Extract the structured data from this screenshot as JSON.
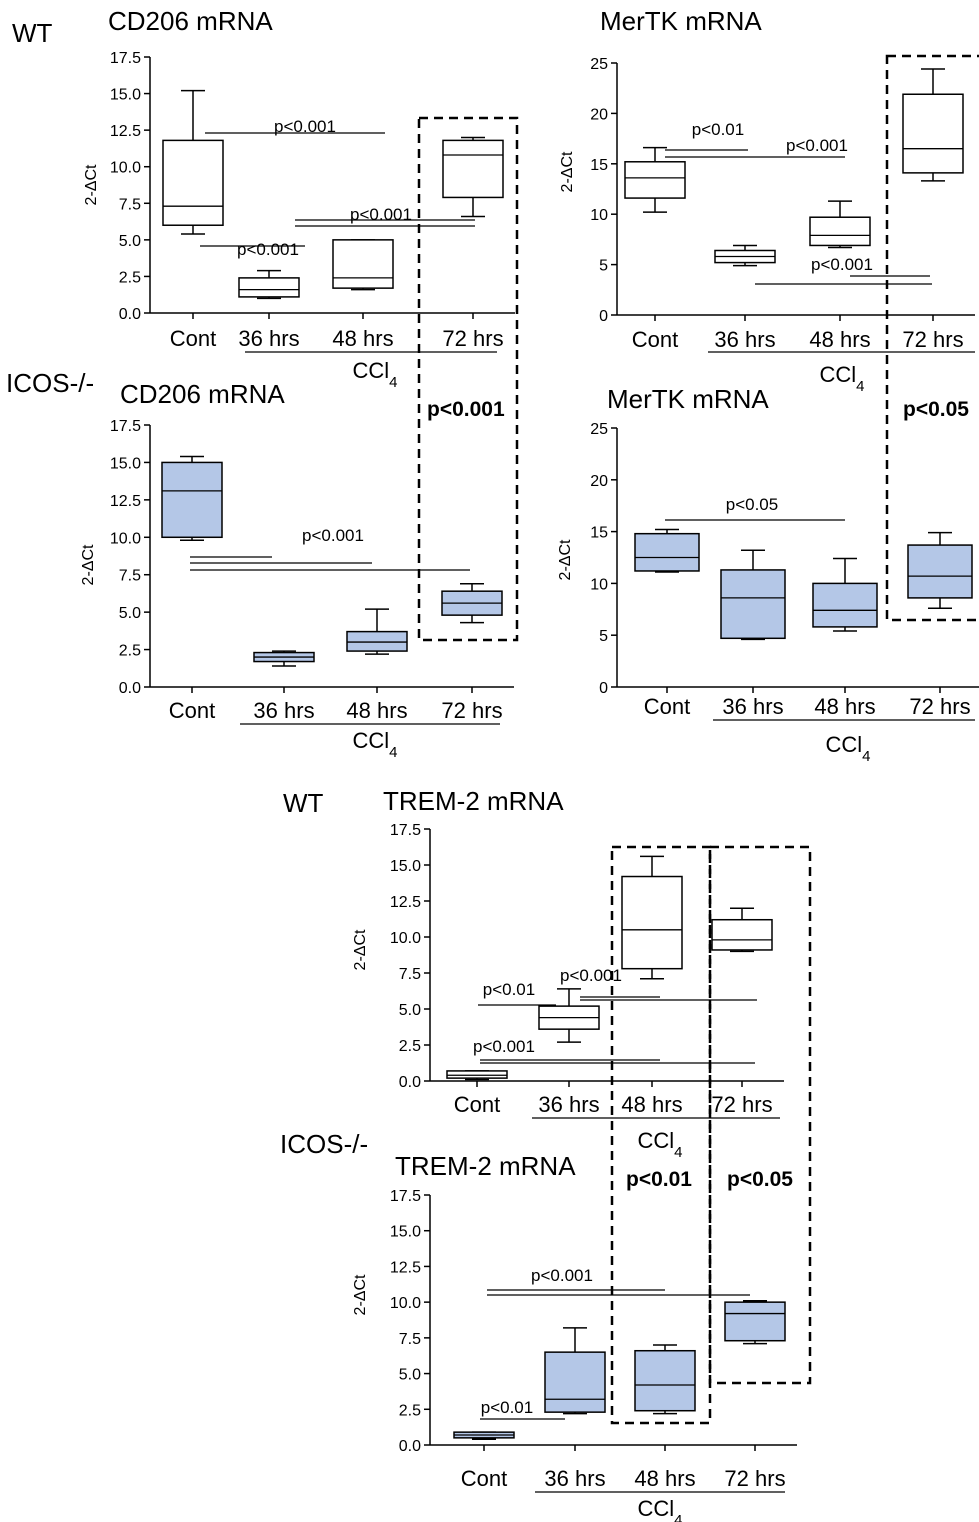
{
  "colors": {
    "wt_box": "#ffffff",
    "icos_box": "#b4c7e7",
    "stroke": "#000000"
  },
  "ylabel": "2-ΔCt",
  "categories": [
    "Cont",
    "36 hrs",
    "48 hrs",
    "72 hrs"
  ],
  "group_label": "CCl4",
  "row_labels": {
    "wt": "WT",
    "icos": "ICOS-/-",
    "wt2": "WT",
    "icos2": "ICOS-/-"
  },
  "highlights": [
    "p<0.001",
    "p<0.05",
    "p<0.01",
    "p<0.05"
  ],
  "chart_data": [
    {
      "type": "box",
      "title": "CD206 mRNA",
      "group": "WT",
      "fill": "white",
      "ylim": [
        0,
        17.5
      ],
      "ticks": [
        "0.0",
        "2.5",
        "5.0",
        "7.5",
        "10.0",
        "12.5",
        "15.0",
        "17.5"
      ],
      "categories": [
        "Cont",
        "36 hrs",
        "48 hrs",
        "72 hrs"
      ],
      "boxes": [
        {
          "min": 5.4,
          "q1": 6.0,
          "median": 7.3,
          "q3": 11.8,
          "max": 15.2
        },
        {
          "min": 1.0,
          "q1": 1.1,
          "median": 1.6,
          "q3": 2.4,
          "max": 2.9
        },
        {
          "min": 1.6,
          "q1": 1.7,
          "median": 2.4,
          "q3": 5.0,
          "max": 5.0
        },
        {
          "min": 6.6,
          "q1": 7.9,
          "median": 10.8,
          "q3": 11.8,
          "max": 12.0
        }
      ],
      "annotations": [
        "p<0.001",
        "p<0.001",
        "p<0.001"
      ]
    },
    {
      "type": "box",
      "title": "MerTK mRNA",
      "group": "WT",
      "fill": "white",
      "ylim": [
        0,
        25
      ],
      "ticks": [
        "0",
        "5",
        "10",
        "15",
        "20",
        "25"
      ],
      "categories": [
        "Cont",
        "36 hrs",
        "48 hrs",
        "72 hrs"
      ],
      "boxes": [
        {
          "min": 10.2,
          "q1": 11.6,
          "median": 13.6,
          "q3": 15.2,
          "max": 16.6
        },
        {
          "min": 4.9,
          "q1": 5.2,
          "median": 5.8,
          "q3": 6.4,
          "max": 6.9
        },
        {
          "min": 6.7,
          "q1": 6.9,
          "median": 7.9,
          "q3": 9.7,
          "max": 11.3
        },
        {
          "min": 13.3,
          "q1": 14.1,
          "median": 16.5,
          "q3": 21.9,
          "max": 24.4
        }
      ],
      "annotations": [
        "p<0.01",
        "p<0.001",
        "p<0.001"
      ]
    },
    {
      "type": "box",
      "title": "CD206 mRNA",
      "group": "ICOS-/-",
      "fill": "blue",
      "ylim": [
        0,
        17.5
      ],
      "ticks": [
        "0.0",
        "2.5",
        "5.0",
        "7.5",
        "10.0",
        "12.5",
        "15.0",
        "17.5"
      ],
      "categories": [
        "Cont",
        "36 hrs",
        "48 hrs",
        "72 hrs"
      ],
      "boxes": [
        {
          "min": 9.8,
          "q1": 10.0,
          "median": 13.1,
          "q3": 15.0,
          "max": 15.4
        },
        {
          "min": 1.4,
          "q1": 1.7,
          "median": 2.0,
          "q3": 2.3,
          "max": 2.4
        },
        {
          "min": 2.2,
          "q1": 2.4,
          "median": 3.0,
          "q3": 3.7,
          "max": 5.2
        },
        {
          "min": 4.3,
          "q1": 4.8,
          "median": 5.6,
          "q3": 6.4,
          "max": 6.9
        }
      ],
      "annotations": [
        "p<0.001"
      ]
    },
    {
      "type": "box",
      "title": "MerTK mRNA",
      "group": "ICOS-/-",
      "fill": "blue",
      "ylim": [
        0,
        25
      ],
      "ticks": [
        "0",
        "5",
        "10",
        "15",
        "20",
        "25"
      ],
      "categories": [
        "Cont",
        "36 hrs",
        "48 hrs",
        "72 hrs"
      ],
      "boxes": [
        {
          "min": 11.1,
          "q1": 11.2,
          "median": 12.5,
          "q3": 14.8,
          "max": 15.2
        },
        {
          "min": 4.6,
          "q1": 4.7,
          "median": 8.6,
          "q3": 11.3,
          "max": 13.2
        },
        {
          "min": 5.4,
          "q1": 5.8,
          "median": 7.4,
          "q3": 10.0,
          "max": 12.4
        },
        {
          "min": 7.6,
          "q1": 8.6,
          "median": 10.7,
          "q3": 13.7,
          "max": 14.9
        }
      ],
      "annotations": [
        "p<0.05"
      ]
    },
    {
      "type": "box",
      "title": "TREM-2 mRNA",
      "group": "WT",
      "fill": "white",
      "ylim": [
        0,
        17.5
      ],
      "ticks": [
        "0.0",
        "2.5",
        "5.0",
        "7.5",
        "10.0",
        "12.5",
        "15.0",
        "17.5"
      ],
      "categories": [
        "Cont",
        "36 hrs",
        "48 hrs",
        "72 hrs"
      ],
      "boxes": [
        {
          "min": 0.1,
          "q1": 0.2,
          "median": 0.4,
          "q3": 0.7,
          "max": 0.7
        },
        {
          "min": 2.7,
          "q1": 3.6,
          "median": 4.4,
          "q3": 5.2,
          "max": 6.4
        },
        {
          "min": 7.1,
          "q1": 7.8,
          "median": 10.5,
          "q3": 14.2,
          "max": 15.6
        },
        {
          "min": 9.0,
          "q1": 9.1,
          "median": 9.8,
          "q3": 11.2,
          "max": 12.0
        }
      ],
      "annotations": [
        "p<0.01",
        "p<0.001",
        "p<0.001"
      ]
    },
    {
      "type": "box",
      "title": "TREM-2 mRNA",
      "group": "ICOS-/-",
      "fill": "blue",
      "ylim": [
        0,
        17.5
      ],
      "ticks": [
        "0.0",
        "2.5",
        "5.0",
        "7.5",
        "10.0",
        "12.5",
        "15.0",
        "17.5"
      ],
      "categories": [
        "Cont",
        "36 hrs",
        "48 hrs",
        "72 hrs"
      ],
      "boxes": [
        {
          "min": 0.4,
          "q1": 0.5,
          "median": 0.7,
          "q3": 0.9,
          "max": 0.9
        },
        {
          "min": 2.2,
          "q1": 2.3,
          "median": 3.2,
          "q3": 6.5,
          "max": 8.2
        },
        {
          "min": 2.2,
          "q1": 2.4,
          "median": 4.2,
          "q3": 6.6,
          "max": 7.0
        },
        {
          "min": 7.1,
          "q1": 7.3,
          "median": 9.2,
          "q3": 10.0,
          "max": 10.1
        }
      ],
      "annotations": [
        "p<0.01",
        "p<0.001"
      ]
    }
  ]
}
